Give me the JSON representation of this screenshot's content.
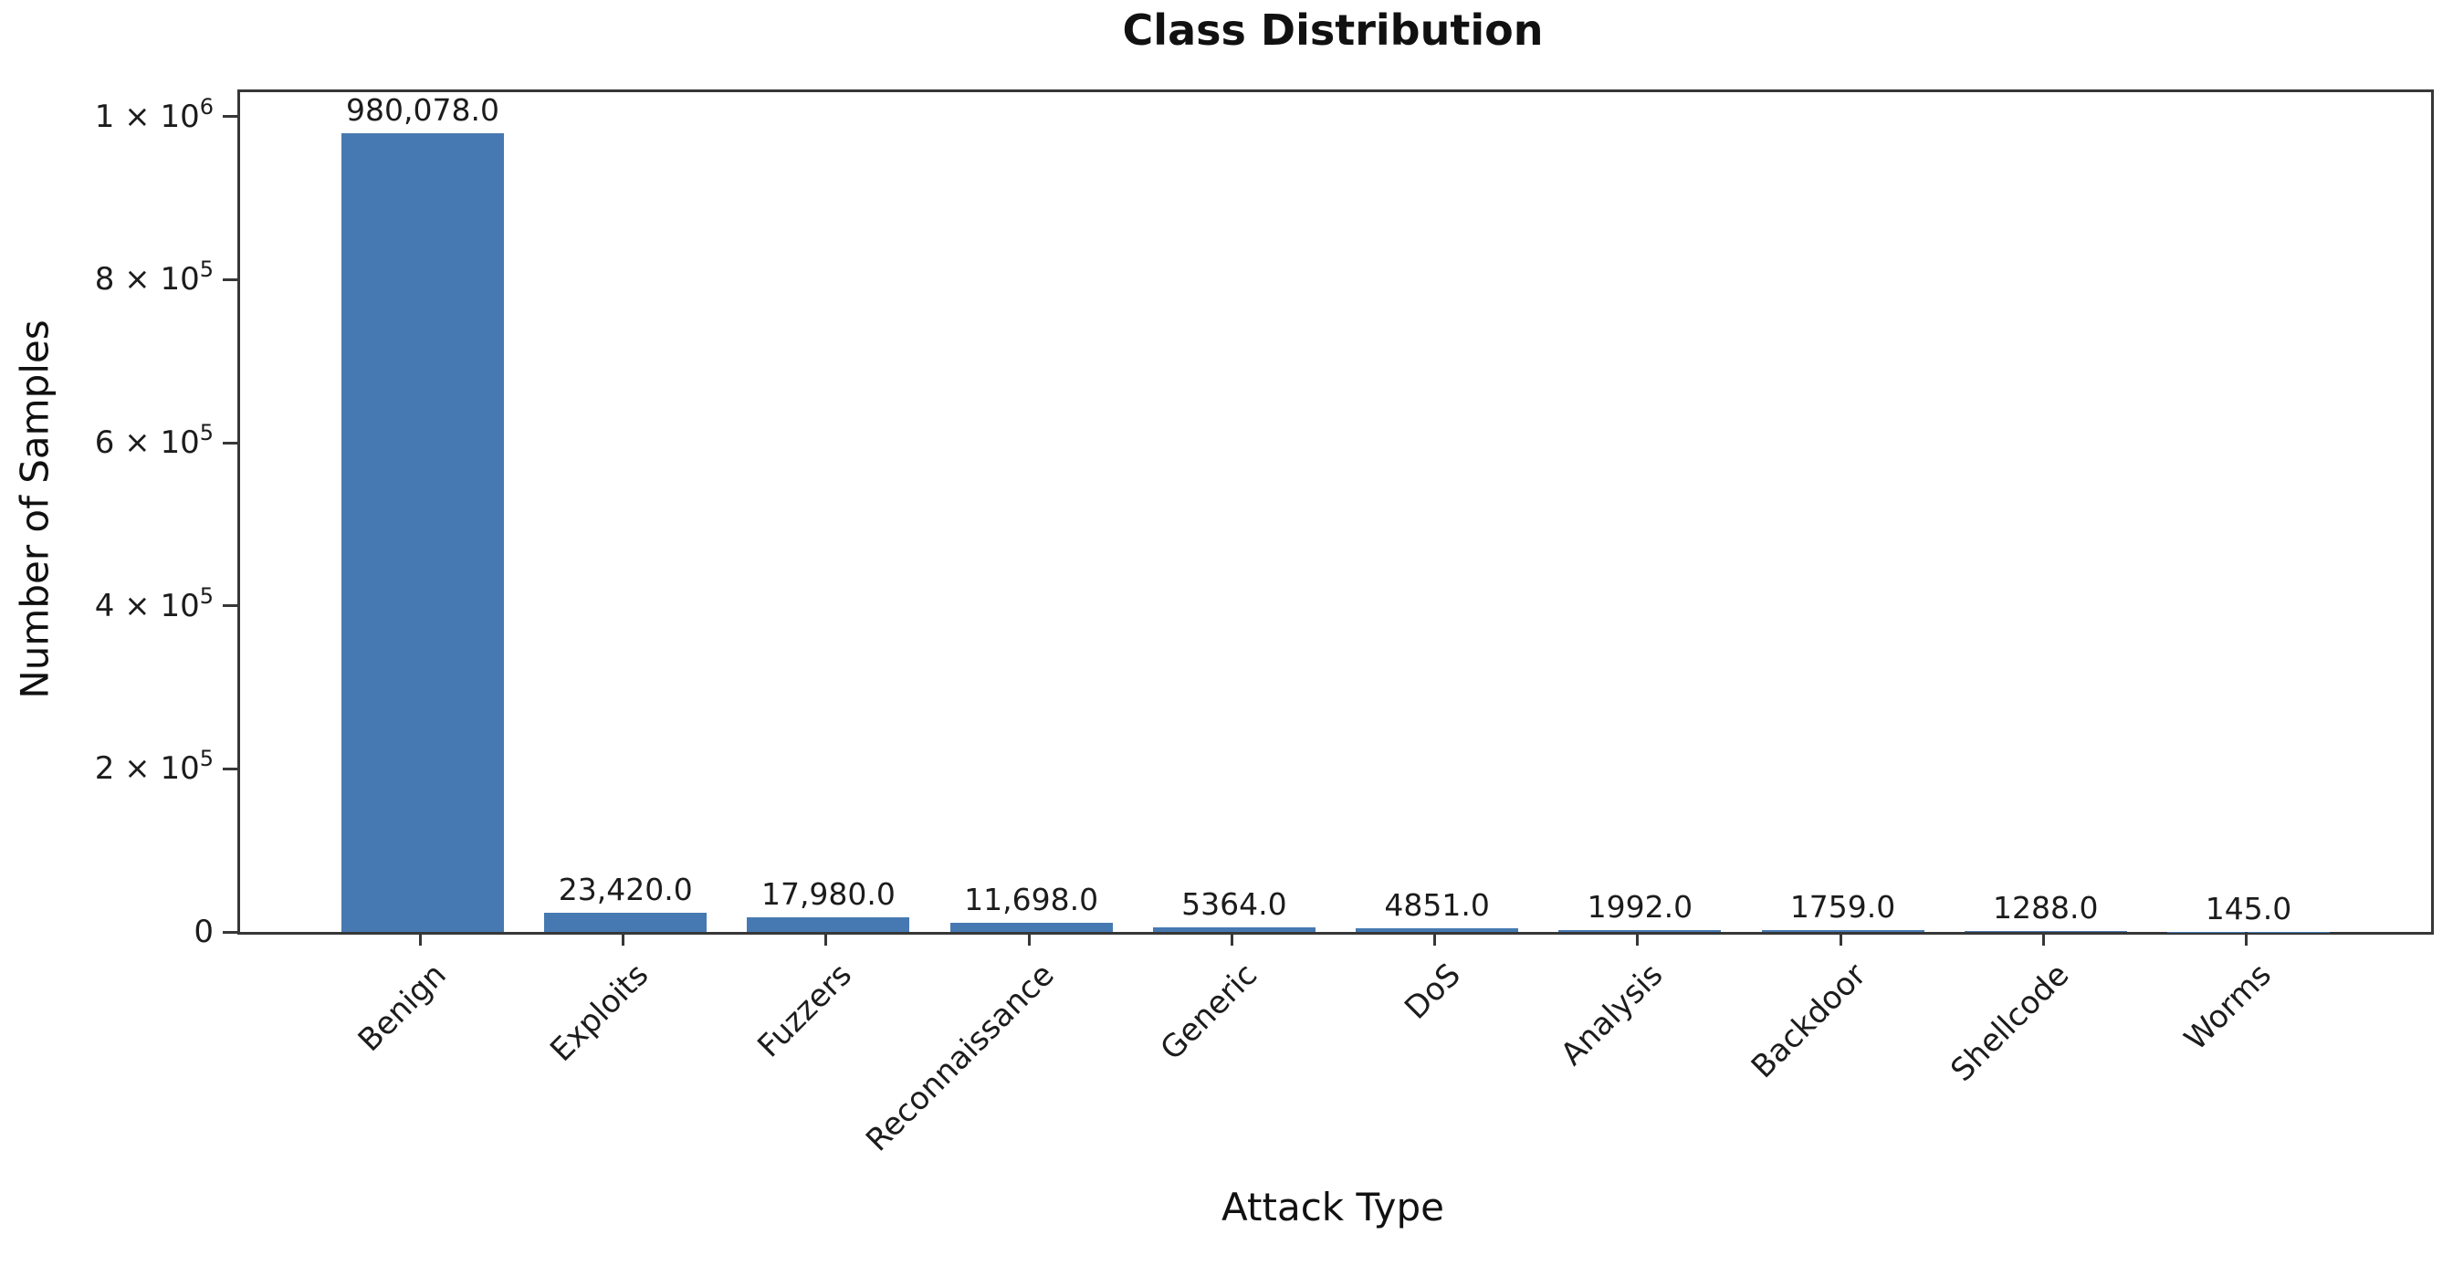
{
  "title": "Class Distribution",
  "xlabel": "Attack Type",
  "ylabel": "Number of Samples",
  "colors": {
    "bar": "#4679b1",
    "spine": "#373737",
    "text": "#1c1c1c",
    "background": "#ffffff"
  },
  "chart_data": {
    "type": "bar",
    "title": "Class Distribution",
    "xlabel": "Attack Type",
    "ylabel": "Number of Samples",
    "categories": [
      "Benign",
      "Exploits",
      "Fuzzers",
      "Reconnaissance",
      "Generic",
      "DoS",
      "Analysis",
      "Backdoor",
      "Shellcode",
      "Worms"
    ],
    "values": [
      980078,
      23420,
      17980,
      11698,
      5364,
      4851,
      1992,
      1759,
      1288,
      145
    ],
    "bar_labels": [
      "980,078.0",
      "23,420.0",
      "17,980.0",
      "11,698.0",
      "5364.0",
      "4851.0",
      "1992.0",
      "1759.0",
      "1288.0",
      "145.0"
    ],
    "ylim": [
      0,
      1030000
    ],
    "yticks": [
      {
        "value": 0,
        "base": "0",
        "exp": ""
      },
      {
        "value": 200000,
        "base": "2 × 10",
        "exp": "5"
      },
      {
        "value": 400000,
        "base": "4 × 10",
        "exp": "5"
      },
      {
        "value": 600000,
        "base": "6 × 10",
        "exp": "5"
      },
      {
        "value": 800000,
        "base": "8 × 10",
        "exp": "5"
      },
      {
        "value": 1000000,
        "base": "1 × 10",
        "exp": "6"
      }
    ],
    "x_tick_rotation_deg": 45,
    "grid": false,
    "legend": null,
    "bar_relative_width": 0.8
  }
}
